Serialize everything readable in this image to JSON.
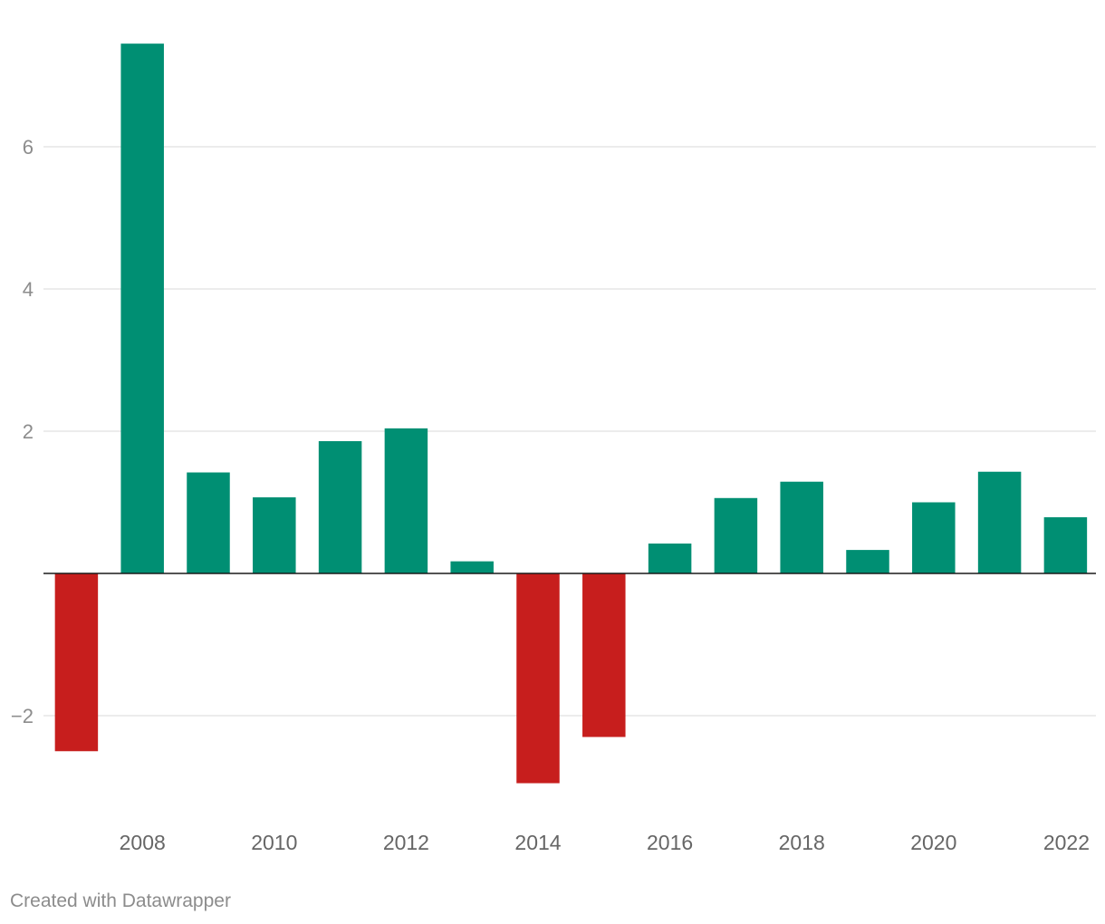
{
  "chart_data": {
    "type": "bar",
    "categories": [
      "2007",
      "2008",
      "2009",
      "2010",
      "2011",
      "2012",
      "2013",
      "2014",
      "2015",
      "2016",
      "2017",
      "2018",
      "2019",
      "2020",
      "2021",
      "2022"
    ],
    "values": [
      -2.5,
      7.45,
      1.42,
      1.07,
      1.86,
      2.04,
      0.17,
      -2.95,
      -2.3,
      0.42,
      1.06,
      1.29,
      0.33,
      1.0,
      1.43,
      0.79
    ],
    "x_tick_labels": [
      "2008",
      "2010",
      "2012",
      "2014",
      "2016",
      "2018",
      "2020",
      "2022"
    ],
    "y_ticks": [
      -2,
      2,
      4,
      6
    ],
    "y_tick_labels": [
      "−2",
      "2",
      "4",
      "6"
    ],
    "ylim": [
      -3.2,
      7.8
    ],
    "grid": true,
    "colors": {
      "positive": "#008f73",
      "negative": "#c71e1d",
      "gridline": "#e0e0e0",
      "baseline": "#1a1a1a"
    }
  },
  "footer": {
    "credit": "Created with Datawrapper"
  }
}
